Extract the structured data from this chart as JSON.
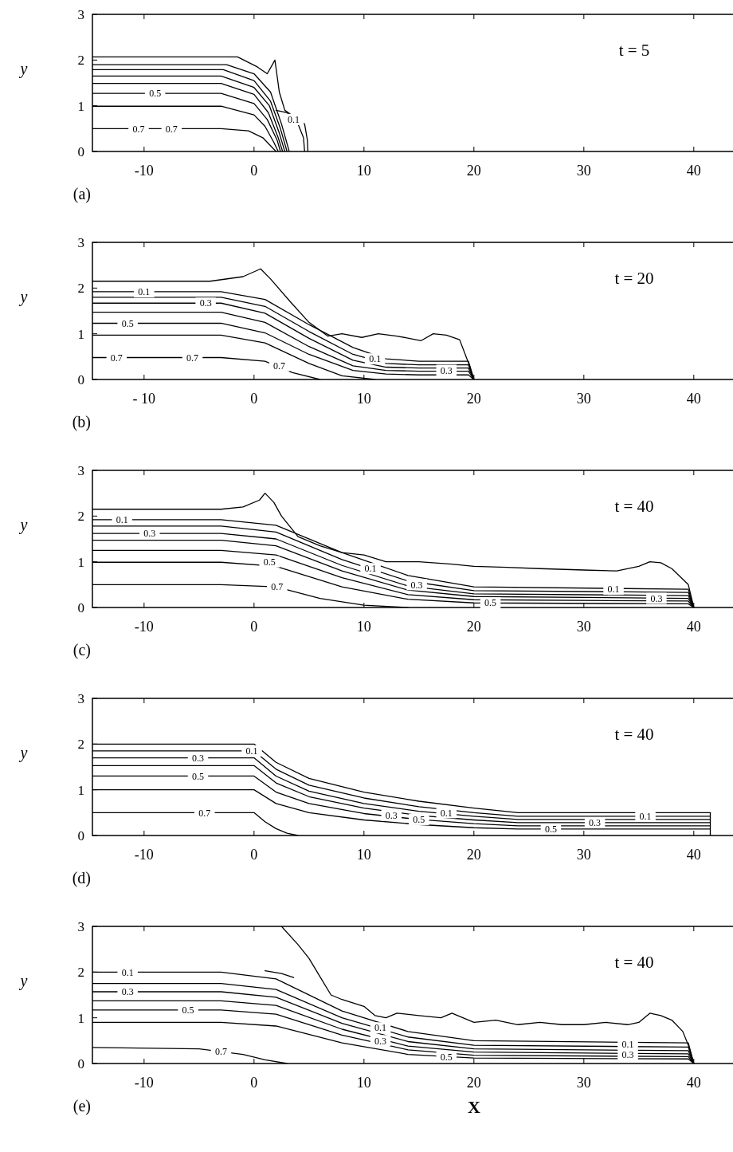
{
  "chart_data": [
    {
      "type": "line",
      "title": "t = 5",
      "ylabel": "y",
      "xlim": [
        -14.7,
        44
      ],
      "ylim": [
        0,
        3
      ],
      "xticks": [
        -10,
        0,
        10,
        20,
        30,
        40
      ],
      "yticks": [
        0,
        1,
        2,
        3
      ],
      "line_style": "solid",
      "series": [
        {
          "color": "#000000",
          "x": [
            -14.7,
            -1.5,
            0.3,
            1.2,
            1.9,
            2.3,
            2.8,
            4.6,
            4.85,
            4.9
          ],
          "values": [
            2.07,
            2.07,
            1.85,
            1.7,
            2.0,
            1.3,
            0.9,
            0.6,
            0.25,
            0
          ]
        },
        {
          "color": "#000000",
          "x": [
            -14.7,
            -2.5,
            0,
            1.5,
            2.5,
            3.2
          ],
          "values": [
            1.9,
            1.9,
            1.7,
            1.3,
            0.6,
            0
          ]
        },
        {
          "color": "#000000",
          "x": [
            -14.7,
            -2.8,
            0,
            1.5,
            2.4,
            3.0
          ],
          "values": [
            1.79,
            1.79,
            1.55,
            1.1,
            0.5,
            0
          ]
        },
        {
          "color": "#000000",
          "x": [
            -14.7,
            -3,
            0,
            1.4,
            2.3,
            2.8
          ],
          "values": [
            1.65,
            1.65,
            1.4,
            1.0,
            0.4,
            0
          ]
        },
        {
          "color": "#000000",
          "x": [
            -14.7,
            -3,
            0,
            1.3,
            2.2,
            2.6
          ],
          "values": [
            1.49,
            1.49,
            1.25,
            0.85,
            0.3,
            0
          ]
        },
        {
          "color": "#000000",
          "x": [
            -14.7,
            -3,
            0,
            1.2,
            2.1,
            2.4
          ],
          "values": [
            1.27,
            1.27,
            1.05,
            0.7,
            0.25,
            0
          ]
        },
        {
          "color": "#000000",
          "x": [
            -14.7,
            -3,
            0,
            1.0,
            1.8,
            2.2
          ],
          "values": [
            0.99,
            0.99,
            0.8,
            0.55,
            0.2,
            0
          ]
        },
        {
          "color": "#000000",
          "x": [
            -14.7,
            -3,
            -0.5,
            0.8,
            1.6,
            2.0
          ],
          "values": [
            0.5,
            0.5,
            0.45,
            0.3,
            0.1,
            0
          ]
        },
        {
          "color": "#000000",
          "x": [
            2.0,
            3.0,
            4.0,
            4.5,
            4.6
          ],
          "values": [
            0.9,
            0.85,
            0.6,
            0.3,
            0
          ]
        }
      ],
      "annotations": [
        "(a)",
        {
          "text": "0.5",
          "x": -9,
          "y": 1.27
        },
        {
          "text": "0.7",
          "x": -10.5,
          "y": 0.5
        },
        {
          "text": "0.7",
          "x": -7.5,
          "y": 0.5
        },
        {
          "text": "0.1",
          "x": 3.6,
          "y": 0.7
        }
      ]
    },
    {
      "type": "line",
      "title": "t = 20",
      "ylabel": "y",
      "xlim": [
        -14.7,
        44
      ],
      "ylim": [
        0,
        3
      ],
      "xticks": [
        {
          "value": -10,
          "label": "- 10"
        },
        0,
        10,
        20,
        30,
        40
      ],
      "yticks": [
        0,
        1,
        2,
        3
      ],
      "line_style": "solid",
      "series": [
        {
          "color": "#000000",
          "x": [
            -14.7,
            -4,
            -1,
            0.6,
            1.5,
            3.3,
            5,
            6.7,
            8,
            9.8,
            11.3,
            13,
            15.2,
            16.3,
            17.5,
            18.7,
            19.6,
            20
          ],
          "values": [
            2.15,
            2.15,
            2.25,
            2.42,
            2.2,
            1.7,
            1.25,
            0.95,
            1.0,
            0.92,
            1.0,
            0.95,
            0.85,
            1.0,
            0.97,
            0.87,
            0.3,
            0
          ]
        },
        {
          "color": "#000000",
          "x": [
            -14.7,
            -3,
            1,
            5,
            9,
            12,
            15,
            19.5,
            20
          ],
          "values": [
            1.92,
            1.92,
            1.75,
            1.2,
            0.7,
            0.45,
            0.4,
            0.4,
            0
          ]
        },
        {
          "color": "#000000",
          "x": [
            -14.7,
            -3,
            1,
            5,
            9,
            12,
            15,
            19.5,
            20
          ],
          "values": [
            1.8,
            1.8,
            1.6,
            1.05,
            0.55,
            0.35,
            0.32,
            0.32,
            0
          ]
        },
        {
          "color": "#000000",
          "x": [
            -14.7,
            -3,
            1,
            5,
            9,
            12,
            15,
            19.5,
            20
          ],
          "values": [
            1.67,
            1.67,
            1.45,
            0.9,
            0.42,
            0.27,
            0.25,
            0.25,
            0
          ]
        },
        {
          "color": "#000000",
          "x": [
            -14.7,
            -3,
            1,
            5,
            9,
            12,
            15,
            19.5,
            20
          ],
          "values": [
            1.47,
            1.47,
            1.25,
            0.72,
            0.3,
            0.2,
            0.18,
            0.18,
            0
          ]
        },
        {
          "color": "#000000",
          "x": [
            -14.7,
            -3,
            1,
            5,
            9,
            12,
            15,
            19.5,
            20
          ],
          "values": [
            1.23,
            1.23,
            1.02,
            0.55,
            0.2,
            0.12,
            0.1,
            0.1,
            0
          ]
        },
        {
          "color": "#000000",
          "x": [
            -14.7,
            -3,
            1,
            5,
            8,
            11
          ],
          "values": [
            0.97,
            0.97,
            0.8,
            0.35,
            0.08,
            0
          ]
        },
        {
          "color": "#000000",
          "x": [
            -14.7,
            -3,
            1,
            3.5,
            6
          ],
          "values": [
            0.48,
            0.48,
            0.4,
            0.15,
            0
          ]
        }
      ],
      "annotations": [
        "(b)",
        {
          "text": "0.1",
          "x": -10,
          "y": 1.92
        },
        {
          "text": "0.3",
          "x": -4.4,
          "y": 1.67
        },
        {
          "text": "0.5",
          "x": -11.5,
          "y": 1.23
        },
        {
          "text": "0.7",
          "x": -12.5,
          "y": 0.48
        },
        {
          "text": "0.7",
          "x": -5.6,
          "y": 0.48
        },
        {
          "text": "0.7",
          "x": 2.3,
          "y": 0.3
        },
        {
          "text": "0.1",
          "x": 11,
          "y": 0.45
        },
        {
          "text": "0.3",
          "x": 17.5,
          "y": 0.2
        }
      ]
    },
    {
      "type": "line",
      "title": "t = 40",
      "ylabel": "y",
      "xlim": [
        -14.7,
        44
      ],
      "ylim": [
        0,
        3
      ],
      "xticks": [
        -10,
        0,
        10,
        20,
        30,
        40
      ],
      "yticks": [
        0,
        1,
        2,
        3
      ],
      "line_style": "solid",
      "series": [
        {
          "color": "#000000",
          "x": [
            -14.7,
            -3,
            -1,
            0.5,
            1,
            1.8,
            2.5,
            4,
            6,
            8,
            10,
            12,
            15,
            18,
            20,
            23,
            26,
            30,
            33,
            35,
            36,
            37,
            38,
            39.5,
            40
          ],
          "values": [
            2.15,
            2.15,
            2.2,
            2.35,
            2.5,
            2.3,
            2.0,
            1.55,
            1.35,
            1.2,
            1.15,
            1.0,
            1.0,
            0.95,
            0.9,
            0.88,
            0.85,
            0.82,
            0.8,
            0.9,
            1.0,
            0.98,
            0.85,
            0.5,
            0
          ]
        },
        {
          "color": "#000000",
          "x": [
            -14.7,
            -3,
            2,
            8,
            14,
            20,
            39.5,
            40
          ],
          "values": [
            1.92,
            1.92,
            1.8,
            1.2,
            0.7,
            0.45,
            0.4,
            0
          ]
        },
        {
          "color": "#000000",
          "x": [
            -14.7,
            -3,
            2,
            8,
            14,
            20,
            39.5,
            40
          ],
          "values": [
            1.78,
            1.78,
            1.65,
            1.05,
            0.58,
            0.37,
            0.33,
            0
          ]
        },
        {
          "color": "#000000",
          "x": [
            -14.7,
            -3,
            2,
            8,
            14,
            20,
            39.5,
            40
          ],
          "values": [
            1.62,
            1.62,
            1.5,
            0.92,
            0.47,
            0.3,
            0.26,
            0
          ]
        },
        {
          "color": "#000000",
          "x": [
            -14.7,
            -3,
            2,
            8,
            14,
            20,
            39.5,
            40
          ],
          "values": [
            1.47,
            1.47,
            1.35,
            0.8,
            0.38,
            0.24,
            0.2,
            0
          ]
        },
        {
          "color": "#000000",
          "x": [
            -14.7,
            -3,
            2,
            8,
            14,
            20,
            39.5,
            40
          ],
          "values": [
            1.25,
            1.25,
            1.15,
            0.65,
            0.28,
            0.17,
            0.14,
            0
          ]
        },
        {
          "color": "#000000",
          "x": [
            -14.7,
            -3,
            2,
            8,
            14,
            20,
            39.5,
            40
          ],
          "values": [
            0.99,
            0.99,
            0.9,
            0.45,
            0.18,
            0.1,
            0.08,
            0
          ]
        },
        {
          "color": "#000000",
          "x": [
            -14.7,
            -3,
            2,
            6,
            10,
            14
          ],
          "values": [
            0.5,
            0.5,
            0.45,
            0.2,
            0.05,
            0
          ]
        }
      ],
      "annotations": [
        "(c)",
        {
          "text": "0.1",
          "x": -12,
          "y": 1.92
        },
        {
          "text": "0.3",
          "x": -9.5,
          "y": 1.62
        },
        {
          "text": "0.5",
          "x": 1.4,
          "y": 1.0
        },
        {
          "text": "0.1",
          "x": 10.6,
          "y": 0.85
        },
        {
          "text": "0.3",
          "x": 14.8,
          "y": 0.5
        },
        {
          "text": "0.7",
          "x": 2.1,
          "y": 0.45
        },
        {
          "text": "0.5",
          "x": 21.5,
          "y": 0.1
        },
        {
          "text": "0.1",
          "x": 32.7,
          "y": 0.4
        },
        {
          "text": "0.3",
          "x": 36.6,
          "y": 0.2
        }
      ]
    },
    {
      "type": "line",
      "title": "t = 40",
      "ylabel": "y",
      "xlim": [
        -14.7,
        44
      ],
      "ylim": [
        0,
        3
      ],
      "xticks": [
        -10,
        0,
        10,
        20,
        30,
        40
      ],
      "yticks": [
        0,
        1,
        2,
        3
      ],
      "line_style": "solid",
      "series": [
        {
          "color": "#000000",
          "x": [
            -14.7,
            0,
            2,
            5,
            10,
            15,
            20,
            24,
            41.5
          ],
          "values": [
            2.0,
            2.0,
            1.6,
            1.25,
            0.95,
            0.75,
            0.6,
            0.5,
            0.5
          ]
        },
        {
          "color": "#000000",
          "x": [
            -14.7,
            0,
            2,
            5,
            10,
            15,
            20,
            24,
            41.5
          ],
          "values": [
            1.85,
            1.85,
            1.45,
            1.1,
            0.82,
            0.63,
            0.5,
            0.42,
            0.42
          ]
        },
        {
          "color": "#000000",
          "x": [
            -14.7,
            0,
            2,
            5,
            10,
            15,
            20,
            24,
            41.5
          ],
          "values": [
            1.7,
            1.7,
            1.3,
            0.97,
            0.7,
            0.53,
            0.42,
            0.35,
            0.35
          ]
        },
        {
          "color": "#000000",
          "x": [
            -14.7,
            0,
            2,
            5,
            10,
            15,
            20,
            24,
            41.5
          ],
          "values": [
            1.53,
            1.53,
            1.15,
            0.85,
            0.6,
            0.44,
            0.34,
            0.28,
            0.28
          ]
        },
        {
          "color": "#000000",
          "x": [
            -14.7,
            0,
            2,
            5,
            10,
            15,
            20,
            24,
            41.5
          ],
          "values": [
            1.3,
            1.3,
            0.95,
            0.7,
            0.48,
            0.35,
            0.26,
            0.21,
            0.21
          ]
        },
        {
          "color": "#000000",
          "x": [
            -14.7,
            0,
            2,
            5,
            10,
            15,
            20,
            24,
            41.5
          ],
          "values": [
            1.0,
            1.0,
            0.7,
            0.5,
            0.34,
            0.24,
            0.17,
            0.14,
            0.14
          ]
        },
        {
          "color": "#000000",
          "x": [
            -14.7,
            0,
            1,
            2,
            3,
            4
          ],
          "values": [
            0.5,
            0.5,
            0.3,
            0.15,
            0.05,
            0
          ]
        },
        {
          "color": "#000000",
          "x": [
            41.5,
            41.5
          ],
          "values": [
            0,
            0.5
          ]
        }
      ],
      "annotations": [
        "(d)",
        {
          "text": "0.1",
          "x": -0.2,
          "y": 1.85
        },
        {
          "text": "0.3",
          "x": -5.1,
          "y": 1.7
        },
        {
          "text": "0.5",
          "x": -5.1,
          "y": 1.3
        },
        {
          "text": "0.7",
          "x": -4.5,
          "y": 0.5
        },
        {
          "text": "0.1",
          "x": 17.5,
          "y": 0.5
        },
        {
          "text": "0.3",
          "x": 12.5,
          "y": 0.44
        },
        {
          "text": "0.5",
          "x": 15,
          "y": 0.35
        },
        {
          "text": "0.1",
          "x": 35.6,
          "y": 0.42
        },
        {
          "text": "0.3",
          "x": 31,
          "y": 0.28
        },
        {
          "text": "0.5",
          "x": 27,
          "y": 0.14
        }
      ]
    },
    {
      "type": "line",
      "title": "t = 40",
      "ylabel": "y",
      "xlabel": "X",
      "xlim": [
        -14.7,
        44
      ],
      "ylim": [
        0,
        3
      ],
      "xticks": [
        -10,
        0,
        10,
        20,
        30,
        40
      ],
      "yticks": [
        0,
        1,
        2,
        3
      ],
      "line_style": "solid",
      "series": [
        {
          "color": "#000000",
          "x": [
            2.5,
            4,
            5,
            6,
            7,
            8,
            10,
            11,
            12,
            13,
            15,
            17,
            18,
            20,
            22,
            24,
            26,
            28,
            30,
            32,
            34,
            35,
            36,
            37,
            38,
            39,
            39.5,
            40
          ],
          "values": [
            3,
            2.6,
            2.3,
            1.9,
            1.5,
            1.4,
            1.25,
            1.05,
            1.0,
            1.1,
            1.05,
            1.0,
            1.1,
            0.9,
            0.95,
            0.85,
            0.9,
            0.85,
            0.85,
            0.9,
            0.85,
            0.9,
            1.1,
            1.05,
            0.95,
            0.7,
            0.4,
            0
          ]
        },
        {
          "color": "#000000",
          "x": [
            1,
            2.5,
            3.6
          ],
          "values": [
            2.03,
            1.97,
            1.88
          ]
        },
        {
          "color": "#000000",
          "x": [
            -14.7,
            -3,
            2,
            8,
            14,
            20,
            39.5,
            40
          ],
          "values": [
            2.0,
            2.0,
            1.85,
            1.15,
            0.7,
            0.5,
            0.45,
            0
          ]
        },
        {
          "color": "#000000",
          "x": [
            -14.7,
            -3,
            2,
            8,
            14,
            20,
            39.5,
            40
          ],
          "values": [
            1.75,
            1.75,
            1.62,
            1.0,
            0.58,
            0.4,
            0.36,
            0
          ]
        },
        {
          "color": "#000000",
          "x": [
            -14.7,
            -3,
            2,
            8,
            14,
            20,
            39.5,
            40
          ],
          "values": [
            1.57,
            1.57,
            1.45,
            0.88,
            0.48,
            0.32,
            0.28,
            0
          ]
        },
        {
          "color": "#000000",
          "x": [
            -14.7,
            -3,
            2,
            8,
            14,
            20,
            39.5,
            40
          ],
          "values": [
            1.37,
            1.37,
            1.27,
            0.75,
            0.38,
            0.25,
            0.21,
            0
          ]
        },
        {
          "color": "#000000",
          "x": [
            -14.7,
            -3,
            2,
            8,
            14,
            20,
            39.5,
            40
          ],
          "values": [
            1.17,
            1.17,
            1.08,
            0.62,
            0.3,
            0.18,
            0.15,
            0
          ]
        },
        {
          "color": "#000000",
          "x": [
            -14.7,
            -3,
            2,
            8,
            14,
            20,
            39.5,
            40
          ],
          "values": [
            0.9,
            0.9,
            0.82,
            0.45,
            0.2,
            0.12,
            0.1,
            0
          ]
        },
        {
          "color": "#000000",
          "x": [
            -14.7,
            -5,
            -1,
            1,
            3
          ],
          "values": [
            0.35,
            0.32,
            0.2,
            0.08,
            0
          ]
        }
      ],
      "annotations": [
        "(e)",
        {
          "text": "0.1",
          "x": -11.5,
          "y": 2.0
        },
        {
          "text": "0.3",
          "x": -11.5,
          "y": 1.57
        },
        {
          "text": "0.5",
          "x": -6,
          "y": 1.17
        },
        {
          "text": "0.7",
          "x": -3,
          "y": 0.26
        },
        {
          "text": "0.1",
          "x": 11.5,
          "y": 0.78
        },
        {
          "text": "0.3",
          "x": 11.5,
          "y": 0.5
        },
        {
          "text": "0.5",
          "x": 17.5,
          "y": 0.15
        },
        {
          "text": "0.1",
          "x": 34,
          "y": 0.42
        },
        {
          "text": "0.3",
          "x": 34,
          "y": 0.2
        }
      ]
    }
  ]
}
